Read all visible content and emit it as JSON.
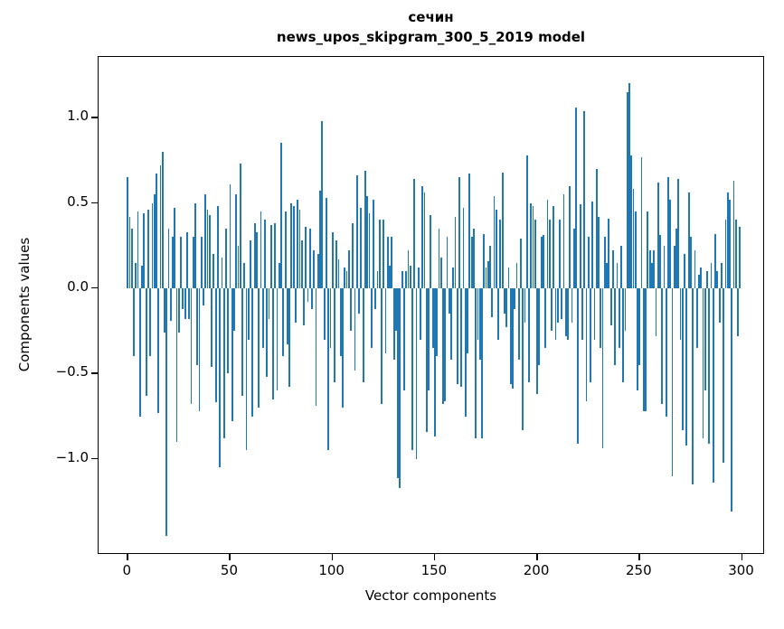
{
  "figure": {
    "title_line1": "сечин",
    "title_line2": "news_upos_skipgram_300_5_2019 model",
    "xlabel": "Vector components",
    "ylabel": "Components values"
  },
  "chart_data": {
    "type": "bar",
    "title": "сечин — news_upos_skipgram_300_5_2019 model",
    "xlabel": "Vector components",
    "ylabel": "Components values",
    "legend": null,
    "grid": false,
    "bar_color": "#1f77b4",
    "n_components": 300,
    "xlim": [
      -14.25,
      311.25
    ],
    "ylim": [
      -1.562,
      1.355
    ],
    "xticks": [
      {
        "value": 0,
        "label": "0"
      },
      {
        "value": 50,
        "label": "50"
      },
      {
        "value": 100,
        "label": "100"
      },
      {
        "value": 150,
        "label": "150"
      },
      {
        "value": 200,
        "label": "200"
      },
      {
        "value": 250,
        "label": "250"
      },
      {
        "value": 300,
        "label": "300"
      }
    ],
    "yticks": [
      {
        "value": 1.0,
        "label": "1.0"
      },
      {
        "value": 0.5,
        "label": "0.5"
      },
      {
        "value": 0.0,
        "label": "0.0"
      },
      {
        "value": -0.5,
        "label": "−0.5"
      },
      {
        "value": -1.0,
        "label": "−1.0"
      }
    ],
    "values": [
      0.65,
      0.42,
      0.35,
      -0.4,
      0.15,
      0.45,
      -0.75,
      0.13,
      0.44,
      -0.63,
      0.46,
      -0.4,
      0.5,
      0.55,
      0.67,
      -0.73,
      0.72,
      0.8,
      -0.26,
      -1.45,
      0.35,
      -0.19,
      0.3,
      0.47,
      -0.9,
      -0.26,
      0.3,
      -0.12,
      -0.18,
      0.33,
      -0.18,
      -0.68,
      0.3,
      0.5,
      -0.45,
      -0.72,
      0.3,
      -0.1,
      0.55,
      0.46,
      0.43,
      -0.46,
      0.2,
      -0.67,
      0.48,
      -1.05,
      0.18,
      -0.88,
      0.35,
      -0.5,
      0.61,
      -0.78,
      -0.25,
      0.55,
      0.25,
      0.73,
      -0.63,
      0.15,
      -0.95,
      -0.3,
      0.28,
      -0.75,
      0.38,
      0.33,
      -0.7,
      0.45,
      -0.35,
      0.4,
      -0.52,
      -0.18,
      0.37,
      -0.65,
      0.38,
      -0.6,
      0.15,
      0.85,
      -0.4,
      0.45,
      -0.33,
      -0.58,
      0.5,
      0.48,
      -0.2,
      0.52,
      0.46,
      0.28,
      -0.22,
      0.36,
      -0.08,
      0.35,
      -0.12,
      0.22,
      -0.69,
      0.2,
      0.57,
      0.98,
      -0.3,
      0.53,
      -0.95,
      -0.35,
      0.33,
      -0.55,
      0.28,
      0.17,
      -0.4,
      -0.7,
      0.12,
      0.1,
      0.22,
      -0.25,
      0.38,
      -0.48,
      0.66,
      -0.15,
      0.47,
      -0.55,
      0.69,
      0.54,
      0.44,
      -0.35,
      0.52,
      -0.12,
      0.1,
      0.4,
      -0.68,
      0.4,
      -0.38,
      0.3,
      0.13,
      0.3,
      -0.42,
      -0.25,
      -1.11,
      -1.17,
      0.1,
      -0.6,
      0.1,
      0.22,
      0.13,
      -0.95,
      0.64,
      -1.0,
      0.12,
      -0.3,
      0.6,
      0.56,
      -0.84,
      -0.6,
      0.43,
      -0.35,
      -0.87,
      -0.4,
      0.35,
      0.18,
      -0.68,
      -0.66,
      0.3,
      -0.15,
      -0.42,
      0.12,
      0.42,
      -0.56,
      0.65,
      -0.58,
      0.47,
      -0.75,
      -0.38,
      0.67,
      0.3,
      0.35,
      -0.88,
      -0.3,
      -0.42,
      -0.88,
      0.32,
      0.12,
      0.16,
      0.25,
      -0.17,
      0.54,
      0.46,
      -0.3,
      0.4,
      0.68,
      -0.15,
      -0.23,
      0.12,
      -0.56,
      -0.59,
      -0.12,
      0.15,
      -0.42,
      0.29,
      -0.83,
      -0.2,
      0.78,
      -0.55,
      0.5,
      0.48,
      0.4,
      -0.62,
      -0.45,
      0.3,
      0.31,
      -0.35,
      0.52,
      0.4,
      -0.25,
      0.48,
      -0.3,
      -0.2,
      0.4,
      -0.18,
      0.55,
      -0.28,
      -0.3,
      0.6,
      -0.2,
      0.35,
      1.06,
      -0.91,
      0.49,
      -0.3,
      1.04,
      -0.66,
      0.3,
      -0.55,
      0.51,
      -0.3,
      0.7,
      0.42,
      -0.35,
      -0.94,
      0.3,
      0.15,
      0.41,
      -0.22,
      0.22,
      -0.45,
      0.15,
      -0.35,
      0.25,
      -0.55,
      -0.25,
      1.15,
      1.2,
      0.78,
      0.58,
      0.45,
      -0.6,
      -0.45,
      0.77,
      -0.72,
      -0.72,
      0.45,
      0.22,
      0.15,
      0.22,
      -0.28,
      0.62,
      0.31,
      -0.68,
      0.25,
      -0.75,
      0.65,
      0.52,
      -1.1,
      0.25,
      0.35,
      0.64,
      -0.3,
      -0.83,
      0.2,
      -0.92,
      0.56,
      0.3,
      -1.15,
      0.22,
      -0.35,
      0.08,
      0.12,
      -0.88,
      -0.6,
      0.1,
      -0.91,
      0.15,
      -1.14,
      0.32,
      0.1,
      -0.2,
      0.15,
      -1.02,
      0.4,
      0.56,
      0.52,
      -1.31,
      0.63,
      0.4,
      -0.28,
      0.36
    ]
  }
}
